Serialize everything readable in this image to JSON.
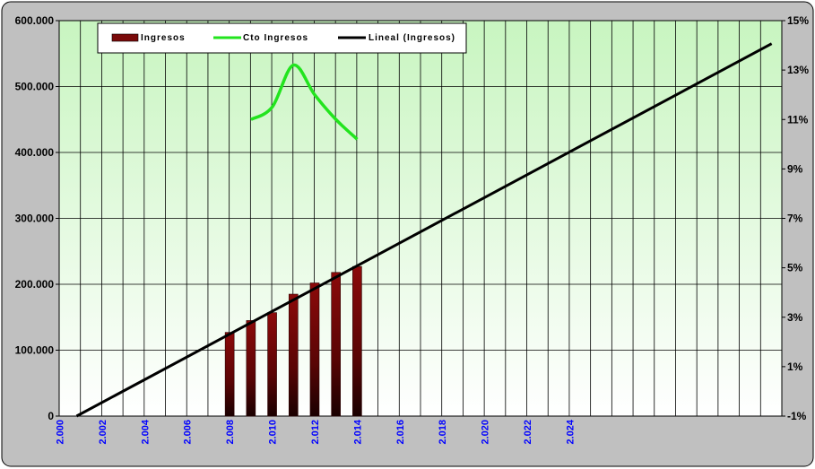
{
  "chart_data": {
    "type": "bar",
    "x_years": [
      2000,
      2001,
      2002,
      2003,
      2004,
      2005,
      2006,
      2007,
      2008,
      2009,
      2010,
      2011,
      2012,
      2013,
      2014,
      2015,
      2016,
      2017,
      2018,
      2019,
      2020,
      2021,
      2022,
      2023,
      2024,
      2025,
      2026,
      2027,
      2028,
      2029,
      2030,
      2031,
      2032,
      2033
    ],
    "x_tick_labels": [
      "2.000",
      "2.002",
      "2.004",
      "2.006",
      "2.008",
      "2.010",
      "2.012",
      "2.014",
      "2.016",
      "2.018",
      "2.020",
      "2.022",
      "2.024"
    ],
    "y_left_ticks": [
      "0",
      "100.000",
      "200.000",
      "300.000",
      "400.000",
      "500.000",
      "600.000"
    ],
    "y_left_range": [
      0,
      600000
    ],
    "y_right_ticks": [
      "-1%",
      "1%",
      "3%",
      "5%",
      "7%",
      "9%",
      "11%",
      "13%",
      "15%"
    ],
    "y_right_range": [
      -1,
      15
    ],
    "series": [
      {
        "name": "Ingresos",
        "kind": "bar",
        "axis": "left",
        "x": [
          2008,
          2009,
          2010,
          2011,
          2012,
          2013,
          2014
        ],
        "values": [
          127000,
          145000,
          157000,
          185000,
          202000,
          218000,
          227000
        ]
      },
      {
        "name": "Cto Ingresos",
        "kind": "line",
        "axis": "right",
        "x": [
          2009,
          2010,
          2011,
          2012,
          2013,
          2014
        ],
        "values": [
          11.0,
          11.5,
          13.2,
          12.0,
          11.0,
          10.2
        ]
      },
      {
        "name": "Lineal (Ingresos)",
        "kind": "trendline",
        "axis": "left",
        "x": [
          2000.8,
          2033.5
        ],
        "values": [
          0,
          565000
        ]
      }
    ],
    "legend_position": "top-left",
    "grid": true,
    "colors": {
      "bar": "#7a0a0a",
      "bar_dark": "#1a0000",
      "growth_line": "#22e41e",
      "trend_line": "#000000",
      "plot_bg_top": "#c8f5c0",
      "plot_bg_bottom": "#ffffff",
      "frame_bg": "#c0c0c0",
      "x_tick_color": "#0000ff"
    }
  }
}
